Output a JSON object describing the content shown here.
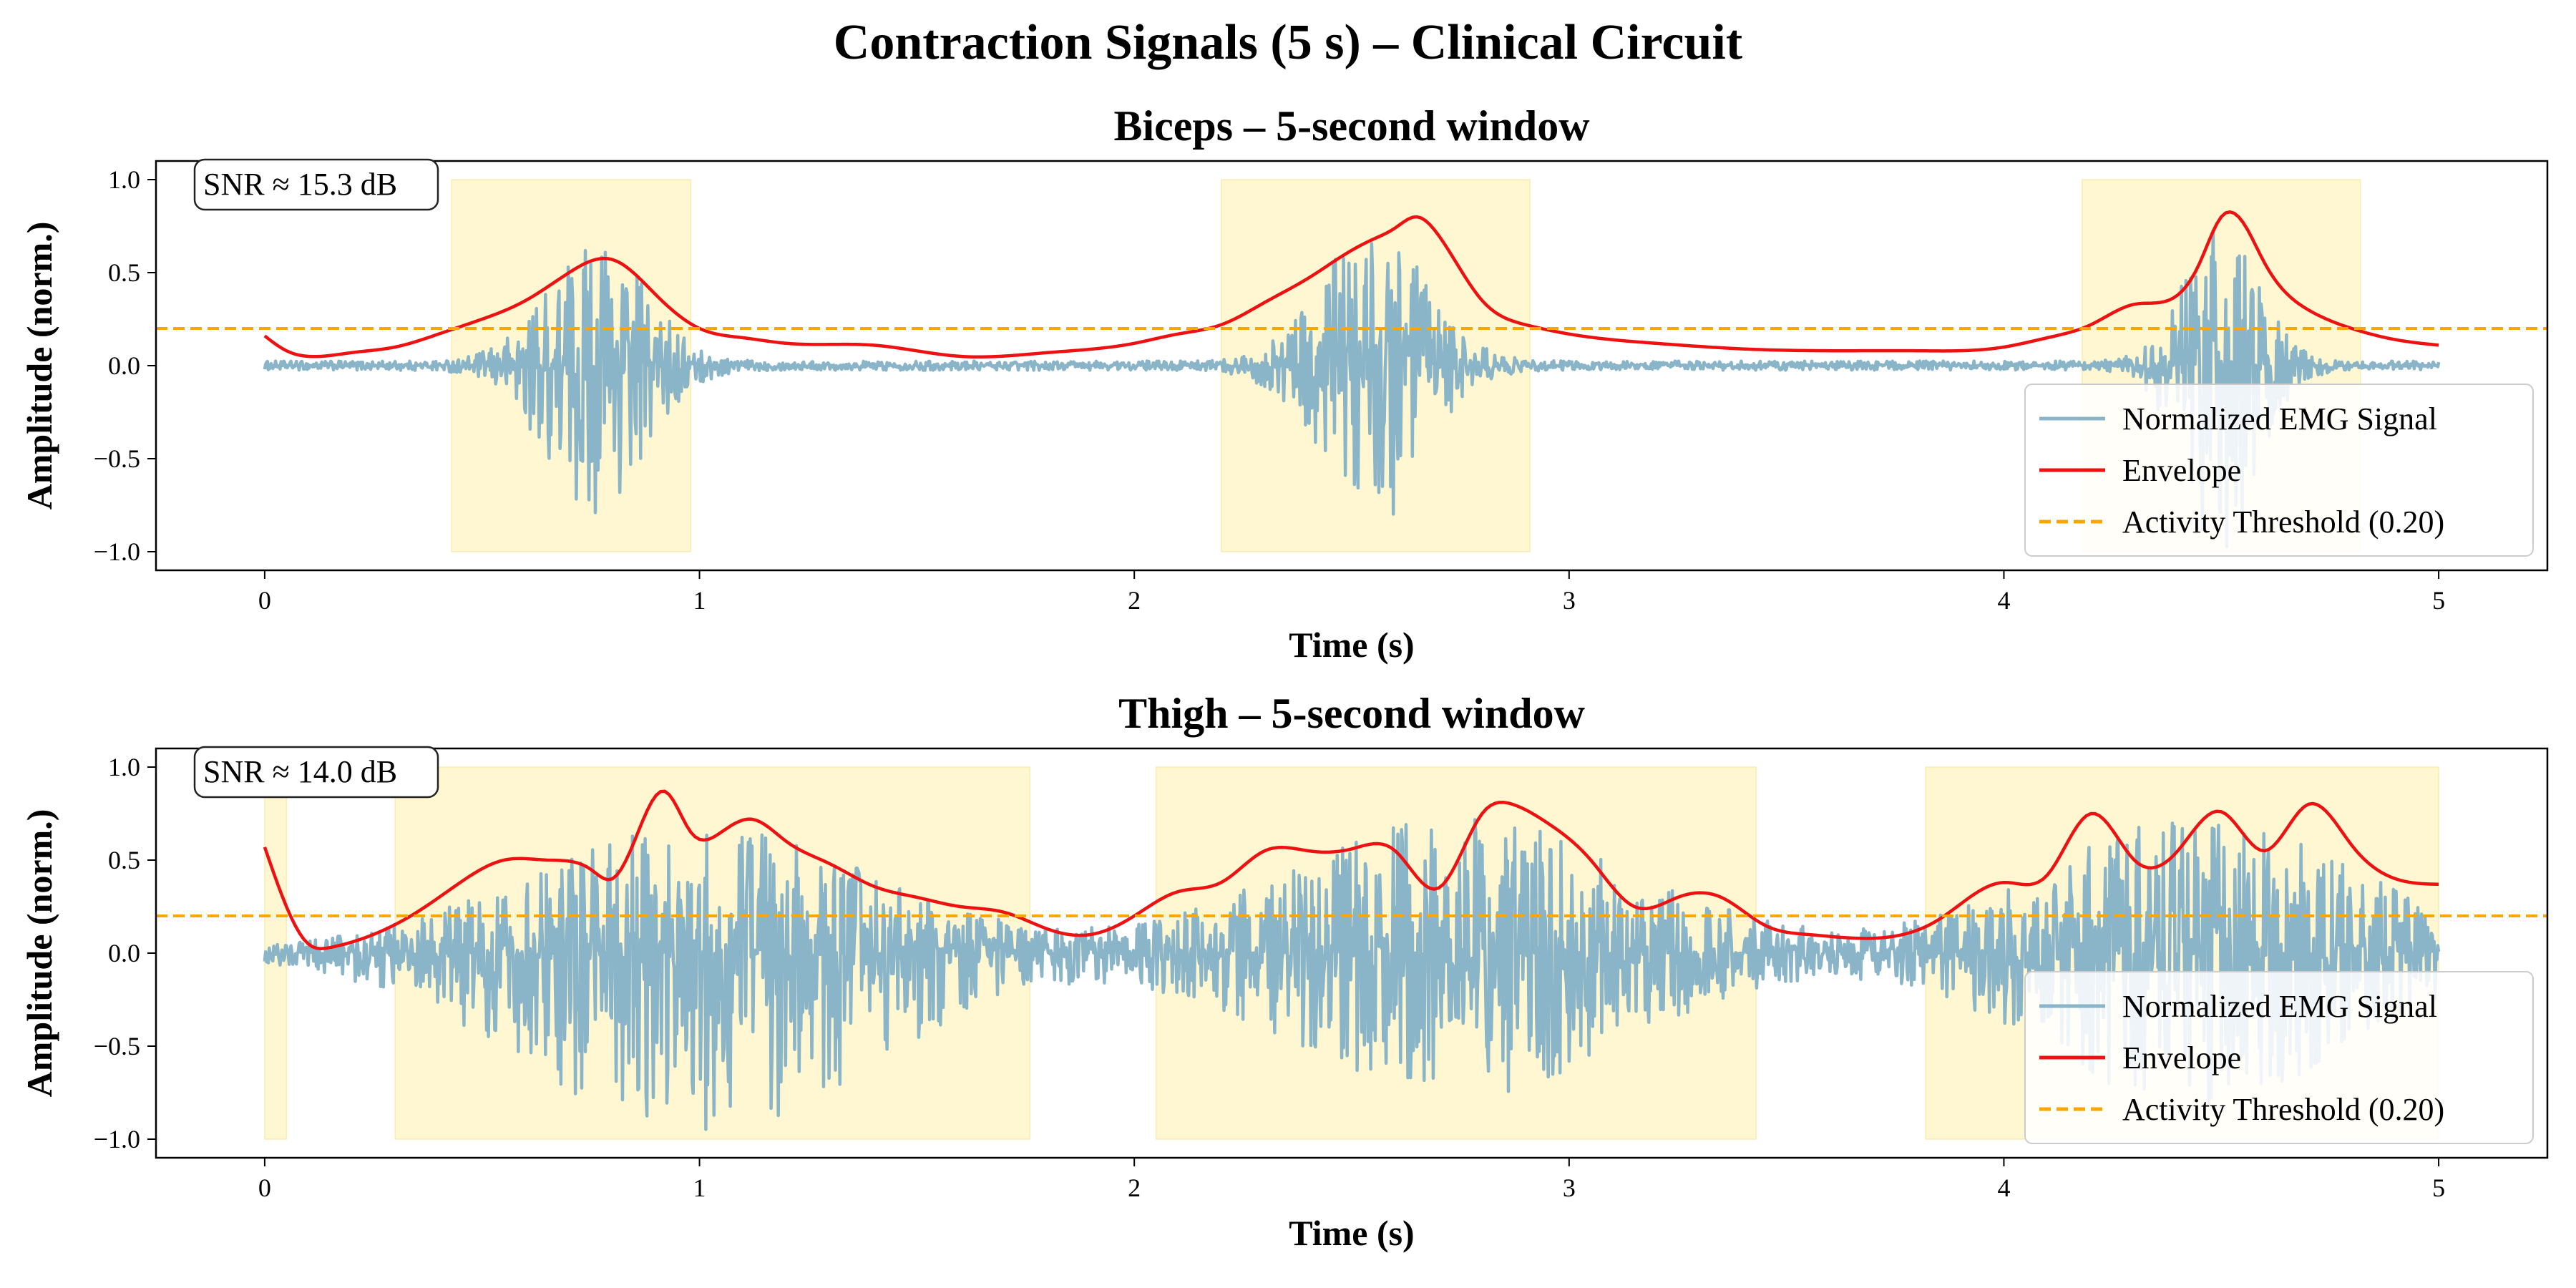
{
  "figure": {
    "title": "Contraction Signals (5 s) – Clinical Circuit"
  },
  "colors": {
    "signal": "#8ab4c8",
    "envelope": "#ee1111",
    "threshold": "#ffa500",
    "active_region": "#fff2b3"
  },
  "legend": {
    "placement": "lower-right",
    "items": [
      "Normalized EMG Signal",
      "Envelope",
      "Activity Threshold (0.20)"
    ]
  },
  "chart_data": [
    {
      "type": "line",
      "title": "Biceps – 5-second window",
      "xlabel": "Time (s)",
      "ylabel": "Amplitude (norm.)",
      "xlim": [
        -0.25,
        5.25
      ],
      "ylim": [
        -1.1,
        1.1
      ],
      "xticks": [
        0,
        1,
        2,
        3,
        4,
        5
      ],
      "yticks": [
        -1.0,
        -0.5,
        0.0,
        0.5,
        1.0
      ],
      "grid": false,
      "annotation": "SNR ≈ 15.3 dB",
      "threshold": 0.2,
      "active_regions": [
        [
          0.43,
          0.98
        ],
        [
          2.2,
          2.91
        ],
        [
          4.18,
          4.82
        ]
      ],
      "signal_bursts": [
        {
          "center": 0.76,
          "width": 0.16,
          "peak": 0.68,
          "neg": 0.78
        },
        {
          "center": 2.55,
          "width": 0.17,
          "peak": 0.72,
          "neg": 0.85
        },
        {
          "center": 4.5,
          "width": 0.12,
          "peak": 0.72,
          "neg": 1.0
        }
      ],
      "signal_baseline_noise": 0.025,
      "envelope": {
        "x": [
          0,
          0.05,
          0.1,
          0.2,
          0.3,
          0.4,
          0.5,
          0.6,
          0.7,
          0.8,
          0.9,
          1.0,
          1.1,
          1.2,
          1.4,
          1.6,
          1.8,
          2.0,
          2.1,
          2.2,
          2.3,
          2.4,
          2.5,
          2.55,
          2.6,
          2.65,
          2.7,
          2.8,
          2.9,
          3.0,
          3.2,
          3.4,
          3.6,
          3.8,
          4.0,
          4.1,
          4.2,
          4.3,
          4.4,
          4.45,
          4.5,
          4.55,
          4.6,
          4.7,
          4.8,
          4.9,
          5.0
        ],
        "y": [
          0.16,
          0.08,
          0.05,
          0.07,
          0.1,
          0.17,
          0.25,
          0.35,
          0.5,
          0.57,
          0.38,
          0.2,
          0.15,
          0.12,
          0.11,
          0.05,
          0.07,
          0.12,
          0.17,
          0.22,
          0.34,
          0.47,
          0.62,
          0.68,
          0.74,
          0.8,
          0.7,
          0.35,
          0.22,
          0.17,
          0.12,
          0.09,
          0.08,
          0.08,
          0.1,
          0.15,
          0.22,
          0.33,
          0.38,
          0.55,
          0.8,
          0.77,
          0.55,
          0.3,
          0.2,
          0.14,
          0.11
        ]
      }
    },
    {
      "type": "line",
      "title": "Thigh – 5-second window",
      "xlabel": "Time (s)",
      "ylabel": "Amplitude (norm.)",
      "xlim": [
        -0.25,
        5.25
      ],
      "ylim": [
        -1.1,
        1.1
      ],
      "xticks": [
        0,
        1,
        2,
        3,
        4,
        5
      ],
      "yticks": [
        -1.0,
        -0.5,
        0.0,
        0.5,
        1.0
      ],
      "grid": false,
      "annotation": "SNR ≈ 14.0 dB",
      "threshold": 0.2,
      "active_regions": [
        [
          0.0,
          0.05
        ],
        [
          0.3,
          1.76
        ],
        [
          2.05,
          3.43
        ],
        [
          3.82,
          5.0
        ]
      ],
      "signal_bursts": [
        {
          "center": 1.0,
          "width": 0.55,
          "peak": 0.66,
          "neg": 0.98
        },
        {
          "center": 2.75,
          "width": 0.55,
          "peak": 0.7,
          "neg": 0.75
        },
        {
          "center": 4.45,
          "width": 0.5,
          "peak": 0.7,
          "neg": 0.8
        }
      ],
      "signal_baseline_noise": 0.03,
      "envelope": {
        "x": [
          0,
          0.05,
          0.1,
          0.15,
          0.25,
          0.35,
          0.45,
          0.55,
          0.65,
          0.75,
          0.8,
          0.85,
          0.92,
          0.98,
          1.05,
          1.12,
          1.2,
          1.3,
          1.4,
          1.5,
          1.6,
          1.7,
          1.8,
          1.9,
          2.0,
          2.1,
          2.2,
          2.3,
          2.4,
          2.5,
          2.6,
          2.7,
          2.8,
          2.87,
          2.95,
          3.05,
          3.15,
          3.25,
          3.35,
          3.45,
          3.55,
          3.7,
          3.85,
          4.0,
          4.1,
          4.2,
          4.3,
          4.4,
          4.5,
          4.6,
          4.7,
          4.8,
          4.9,
          5.0
        ],
        "y": [
          0.57,
          0.25,
          0.05,
          0.03,
          0.1,
          0.22,
          0.38,
          0.5,
          0.5,
          0.45,
          0.4,
          0.6,
          0.87,
          0.65,
          0.65,
          0.72,
          0.6,
          0.48,
          0.36,
          0.3,
          0.25,
          0.22,
          0.13,
          0.1,
          0.2,
          0.33,
          0.38,
          0.55,
          0.55,
          0.56,
          0.55,
          0.35,
          0.75,
          0.8,
          0.7,
          0.5,
          0.25,
          0.3,
          0.3,
          0.15,
          0.1,
          0.08,
          0.18,
          0.38,
          0.42,
          0.75,
          0.5,
          0.55,
          0.76,
          0.55,
          0.8,
          0.58,
          0.4,
          0.37
        ]
      }
    }
  ]
}
